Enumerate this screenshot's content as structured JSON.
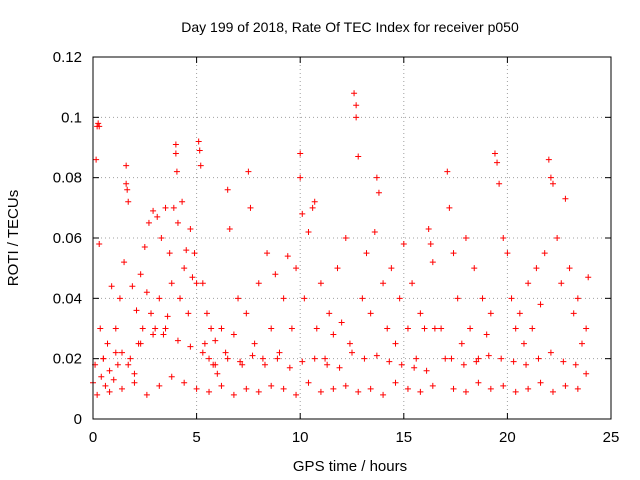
{
  "chart_data": {
    "type": "scatter",
    "title": "Day 199 of 2018, Rate Of TEC Index for receiver p050",
    "xlabel": "GPS time / hours",
    "ylabel": "ROTI / TECUs",
    "xlim": [
      0,
      25
    ],
    "ylim": [
      0,
      0.12
    ],
    "x_ticks": [
      0,
      5,
      10,
      15,
      20,
      25
    ],
    "y_ticks": [
      0,
      0.02,
      0.04,
      0.06,
      0.08,
      0.1,
      0.12
    ],
    "x_tick_labels": [
      "0",
      "5",
      "10",
      "15",
      "20",
      "25"
    ],
    "y_tick_labels": [
      "0",
      "0.02",
      "0.04",
      "0.06",
      "0.08",
      "0.1",
      "0.12"
    ],
    "grid": true,
    "marker": "plus",
    "color": "#ff0000",
    "data_gap_hours": [
      16.5,
      16.8
    ],
    "series": [
      {
        "name": "ROTI",
        "x": [
          0.0,
          0.1,
          0.15,
          0.2,
          0.25,
          0.3,
          0.3,
          0.35,
          0.4,
          0.5,
          0.6,
          0.7,
          0.8,
          0.9,
          1.0,
          1.1,
          1.2,
          1.3,
          1.4,
          1.5,
          1.6,
          1.6,
          1.65,
          1.7,
          1.8,
          1.9,
          2.0,
          2.1,
          2.2,
          2.3,
          2.4,
          2.5,
          2.6,
          2.7,
          2.8,
          2.9,
          3.0,
          3.1,
          3.2,
          3.3,
          3.4,
          3.5,
          3.6,
          3.7,
          3.8,
          3.9,
          4.0,
          4.0,
          4.05,
          4.1,
          4.2,
          4.3,
          4.4,
          4.5,
          4.6,
          4.7,
          4.8,
          4.9,
          5.0,
          5.1,
          5.15,
          5.2,
          5.3,
          5.4,
          5.5,
          5.6,
          5.7,
          5.8,
          5.9,
          6.0,
          6.2,
          6.4,
          6.5,
          6.6,
          6.8,
          7.0,
          7.2,
          7.4,
          7.5,
          7.6,
          7.8,
          8.0,
          8.2,
          8.4,
          8.6,
          8.8,
          9.0,
          9.2,
          9.4,
          9.6,
          9.8,
          10.0,
          10.0,
          10.1,
          10.2,
          10.4,
          10.6,
          10.7,
          10.8,
          11.0,
          11.2,
          11.4,
          11.6,
          11.8,
          12.0,
          12.2,
          12.4,
          12.6,
          12.7,
          12.7,
          12.8,
          13.0,
          13.2,
          13.4,
          13.6,
          13.7,
          13.8,
          14.0,
          14.2,
          14.4,
          14.6,
          14.8,
          15.0,
          15.2,
          15.4,
          15.6,
          15.8,
          16.0,
          16.2,
          16.3,
          16.4,
          16.5,
          16.8,
          17.0,
          17.1,
          17.2,
          17.4,
          17.6,
          17.8,
          18.0,
          18.2,
          18.4,
          18.6,
          18.8,
          19.0,
          19.2,
          19.4,
          19.5,
          19.6,
          19.8,
          20.0,
          20.2,
          20.4,
          20.6,
          20.8,
          21.0,
          21.2,
          21.4,
          21.6,
          21.8,
          22.0,
          22.1,
          22.2,
          22.4,
          22.6,
          22.8,
          23.0,
          23.2,
          23.4,
          23.6,
          23.8,
          23.9,
          0.2,
          0.8,
          1.4,
          2.0,
          2.6,
          3.2,
          3.8,
          4.4,
          5.0,
          5.6,
          6.2,
          6.8,
          7.4,
          8.0,
          8.6,
          9.2,
          9.8,
          10.4,
          11.0,
          11.6,
          12.2,
          12.8,
          13.4,
          14.0,
          14.6,
          15.2,
          15.8,
          16.4,
          17.4,
          18.0,
          18.6,
          19.2,
          19.8,
          20.4,
          21.0,
          21.6,
          22.2,
          22.8,
          23.4,
          0.5,
          1.1,
          1.7,
          2.3,
          2.9,
          3.5,
          4.1,
          4.7,
          5.3,
          5.9,
          6.5,
          7.1,
          7.7,
          8.3,
          8.9,
          9.5,
          10.1,
          10.7,
          11.3,
          11.9,
          12.5,
          13.1,
          13.7,
          14.3,
          14.9,
          15.5,
          16.1,
          17.3,
          17.9,
          18.5,
          19.1,
          19.7,
          20.3,
          20.9,
          21.5,
          22.1,
          22.7,
          23.3,
          23.8
        ],
        "y": [
          0.012,
          0.018,
          0.086,
          0.097,
          0.098,
          0.097,
          0.058,
          0.03,
          0.014,
          0.02,
          0.011,
          0.025,
          0.016,
          0.044,
          0.013,
          0.03,
          0.018,
          0.04,
          0.022,
          0.052,
          0.084,
          0.078,
          0.076,
          0.072,
          0.02,
          0.044,
          0.015,
          0.036,
          0.025,
          0.048,
          0.03,
          0.057,
          0.042,
          0.065,
          0.035,
          0.069,
          0.03,
          0.067,
          0.04,
          0.06,
          0.028,
          0.07,
          0.034,
          0.055,
          0.045,
          0.07,
          0.091,
          0.088,
          0.082,
          0.065,
          0.04,
          0.072,
          0.05,
          0.056,
          0.035,
          0.063,
          0.047,
          0.055,
          0.045,
          0.092,
          0.089,
          0.084,
          0.045,
          0.025,
          0.035,
          0.02,
          0.03,
          0.018,
          0.026,
          0.015,
          0.03,
          0.022,
          0.076,
          0.063,
          0.028,
          0.04,
          0.018,
          0.035,
          0.082,
          0.07,
          0.025,
          0.045,
          0.02,
          0.055,
          0.03,
          0.048,
          0.022,
          0.04,
          0.054,
          0.03,
          0.05,
          0.088,
          0.08,
          0.068,
          0.04,
          0.062,
          0.07,
          0.072,
          0.03,
          0.045,
          0.02,
          0.035,
          0.028,
          0.05,
          0.032,
          0.06,
          0.025,
          0.108,
          0.104,
          0.1,
          0.087,
          0.04,
          0.055,
          0.035,
          0.062,
          0.08,
          0.075,
          0.045,
          0.03,
          0.05,
          0.025,
          0.04,
          0.058,
          0.03,
          0.045,
          0.02,
          0.035,
          0.03,
          0.063,
          0.058,
          0.052,
          0.03,
          0.03,
          0.02,
          0.082,
          0.07,
          0.055,
          0.04,
          0.025,
          0.06,
          0.03,
          0.05,
          0.02,
          0.04,
          0.028,
          0.035,
          0.088,
          0.085,
          0.078,
          0.06,
          0.055,
          0.04,
          0.03,
          0.035,
          0.025,
          0.045,
          0.03,
          0.05,
          0.038,
          0.055,
          0.086,
          0.08,
          0.078,
          0.06,
          0.045,
          0.073,
          0.05,
          0.035,
          0.04,
          0.025,
          0.03,
          0.047,
          0.008,
          0.009,
          0.01,
          0.012,
          0.008,
          0.011,
          0.014,
          0.012,
          0.01,
          0.009,
          0.011,
          0.008,
          0.01,
          0.009,
          0.011,
          0.01,
          0.008,
          0.012,
          0.009,
          0.01,
          0.011,
          0.009,
          0.01,
          0.008,
          0.012,
          0.01,
          0.009,
          0.011,
          0.01,
          0.009,
          0.012,
          0.01,
          0.011,
          0.009,
          0.01,
          0.012,
          0.009,
          0.011,
          0.01,
          0.02,
          0.022,
          0.018,
          0.025,
          0.028,
          0.03,
          0.026,
          0.024,
          0.022,
          0.018,
          0.02,
          0.019,
          0.021,
          0.018,
          0.02,
          0.017,
          0.019,
          0.02,
          0.018,
          0.017,
          0.022,
          0.02,
          0.021,
          0.019,
          0.018,
          0.017,
          0.016,
          0.02,
          0.018,
          0.019,
          0.021,
          0.02,
          0.019,
          0.018,
          0.02,
          0.022,
          0.019,
          0.018,
          0.015
        ]
      }
    ]
  }
}
